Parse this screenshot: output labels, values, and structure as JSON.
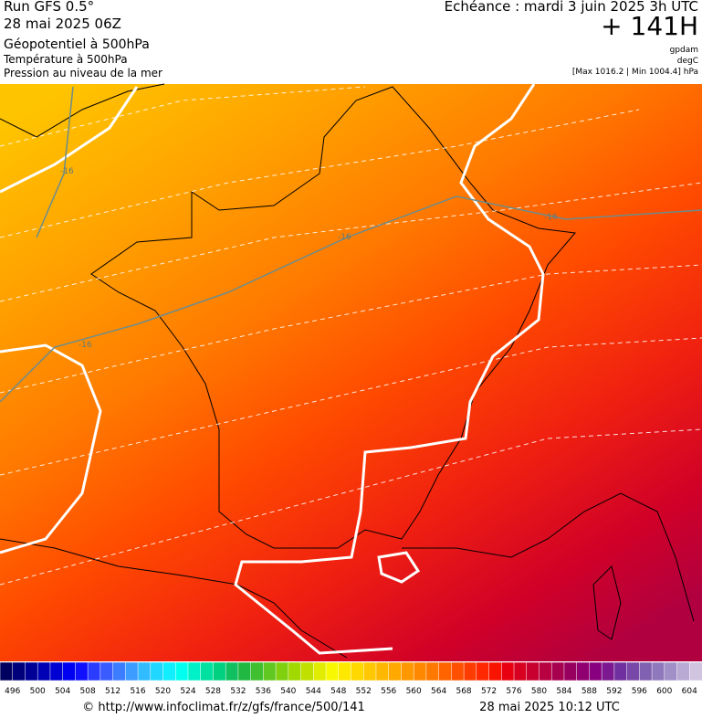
{
  "header": {
    "run": "Run GFS 0.5°",
    "date": "28 mai 2025 06Z",
    "field1": "Géopotentiel à 500hPa",
    "field2": "Température à 500hPa",
    "field3": "Pression au niveau de la mer",
    "echeance": "Echéance : mardi 3 juin 2025 3h UTC",
    "offset": "+ 141H",
    "unit1": "gpdam",
    "unit2": "degC",
    "range": "[Max 1016.2 | Min 1004.4] hPa"
  },
  "map": {
    "contour_labels": [
      "-16",
      "-16",
      "-16",
      "-16"
    ]
  },
  "colorbar": {
    "labels": [
      496,
      500,
      504,
      508,
      512,
      516,
      520,
      524,
      528,
      532,
      536,
      540,
      544,
      548,
      552,
      556,
      560,
      564,
      568,
      572,
      576,
      580,
      584,
      588,
      592,
      596,
      600,
      604
    ],
    "colors": [
      "#000060",
      "#00007a",
      "#000096",
      "#0000b4",
      "#0000d2",
      "#0000f0",
      "#1010ff",
      "#2a3cff",
      "#3a5cff",
      "#3c7cff",
      "#3c9cff",
      "#30bcff",
      "#20d8ff",
      "#10eeff",
      "#00ffee",
      "#00f0c8",
      "#00e0a0",
      "#00d080",
      "#10c060",
      "#20b840",
      "#40c030",
      "#60c820",
      "#80d010",
      "#a0d800",
      "#c0e000",
      "#e0ec00",
      "#f8f800",
      "#ffe800",
      "#ffd800",
      "#ffc800",
      "#ffb800",
      "#ffa800",
      "#ff9800",
      "#ff8800",
      "#ff7800",
      "#ff6400",
      "#ff5000",
      "#ff3c00",
      "#ff2800",
      "#f81400",
      "#e80010",
      "#d80020",
      "#c80030",
      "#b80040",
      "#a80050",
      "#980060",
      "#900070",
      "#880080",
      "#7c1890",
      "#7030a0",
      "#7848a8",
      "#8060b0",
      "#9078bc",
      "#a090c8",
      "#b8aad4",
      "#d0c4e0"
    ]
  },
  "footer": {
    "url": "© http://www.infoclimat.fr/z/gfs/france/500/141",
    "time": "28 mai 2025 10:12 UTC"
  }
}
